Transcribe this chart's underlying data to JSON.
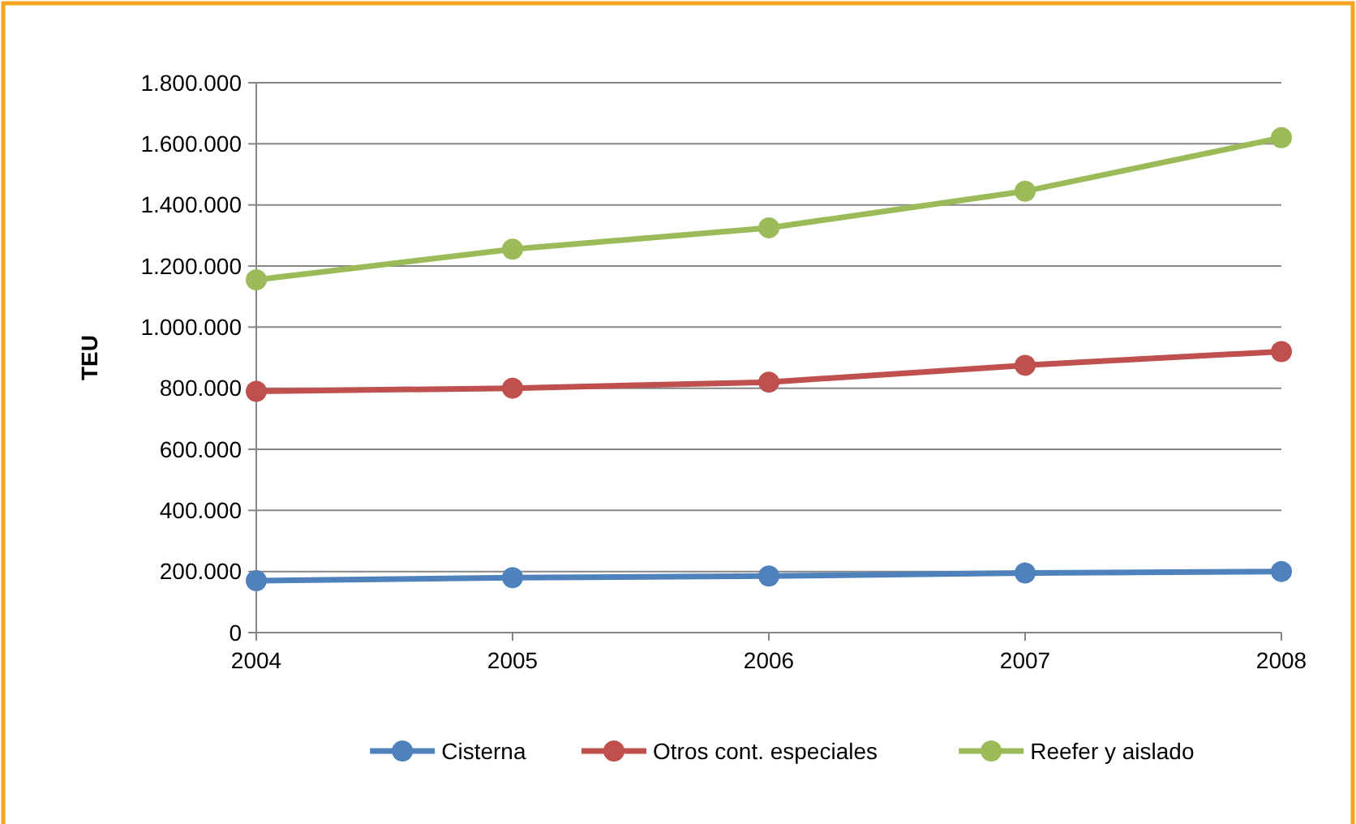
{
  "chart_data": {
    "type": "line",
    "ylabel": "TEU",
    "categories": [
      "2004",
      "2005",
      "2006",
      "2007",
      "2008"
    ],
    "series": [
      {
        "name": "Cisterna",
        "color": "#4f81bd",
        "values": [
          170000,
          180000,
          185000,
          195000,
          200000
        ]
      },
      {
        "name": "Otros cont. especiales",
        "color": "#c0504d",
        "values": [
          790000,
          800000,
          820000,
          875000,
          920000
        ]
      },
      {
        "name": "Reefer y aislado",
        "color": "#9bbb59",
        "values": [
          1155000,
          1255000,
          1325000,
          1445000,
          1620000
        ]
      }
    ],
    "ylim": [
      0,
      1800000
    ],
    "yticks": [
      0,
      {
        "value": 200000,
        "label": "200.000"
      },
      {
        "value": 400000,
        "label": "400.000"
      },
      {
        "value": 600000,
        "label": "600.000"
      },
      {
        "value": 800000,
        "label": "800.000"
      },
      {
        "value": 1000000,
        "label": "1.000.000"
      },
      {
        "value": 1200000,
        "label": "1.200.000"
      },
      {
        "value": 1400000,
        "label": "1.400.000"
      },
      {
        "value": 1600000,
        "label": "1.600.000"
      },
      {
        "value": 1800000,
        "label": "1.800.000"
      }
    ],
    "grid": "y",
    "legend": "bottom",
    "marker": "circle",
    "line_style": "solid"
  }
}
